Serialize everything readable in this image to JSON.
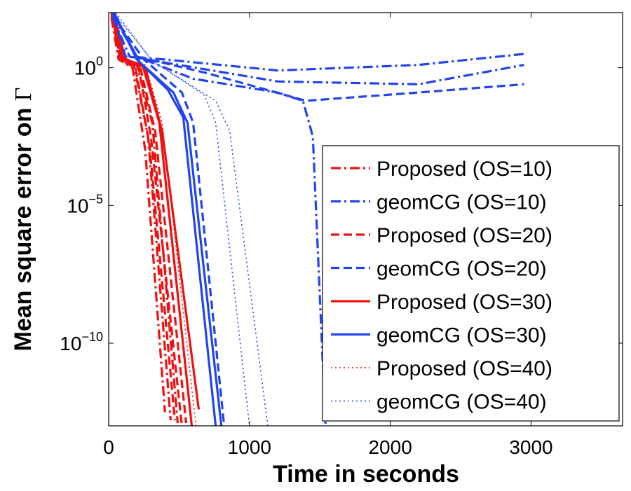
{
  "chart_data": {
    "type": "line",
    "xlabel": "Time in seconds",
    "ylabel_prefix": "Mean square error on ",
    "ylabel_symbol": "Γ",
    "xlim": [
      0,
      3650
    ],
    "ylim_log10": [
      -13,
      2
    ],
    "y_scale": "log",
    "x_ticks": [
      0,
      1000,
      2000,
      3000
    ],
    "x_tick_labels": [
      "0",
      "1000",
      "2000",
      "3000"
    ],
    "y_ticks_log10": [
      0,
      -5,
      -10
    ],
    "y_tick_labels": [
      {
        "base": "10",
        "exp": "0"
      },
      {
        "base": "10",
        "exp": "−5"
      },
      {
        "base": "10",
        "exp": "−10"
      }
    ],
    "legend_position": "right-center",
    "legend": [
      {
        "label": "Proposed (OS=10)",
        "color": "#ee1111",
        "style": "dashdot"
      },
      {
        "label": "geomCG (OS=10)",
        "color": "#2244ee",
        "style": "dashdot"
      },
      {
        "label": "Proposed (OS=20)",
        "color": "#ee1111",
        "style": "dashed"
      },
      {
        "label": "geomCG (OS=20)",
        "color": "#2244ee",
        "style": "dashed"
      },
      {
        "label": "Proposed (OS=30)",
        "color": "#ee1111",
        "style": "solid"
      },
      {
        "label": "geomCG (OS=30)",
        "color": "#2244ee",
        "style": "solid"
      },
      {
        "label": "Proposed (OS=40)",
        "color": "#ee1111",
        "style": "dotted"
      },
      {
        "label": "geomCG (OS=40)",
        "color": "#2244ee",
        "style": "dotted"
      }
    ],
    "series": [
      {
        "name": "Proposed (OS=10) run 1",
        "color": "#ee1111",
        "style": "dashdot",
        "points": [
          [
            20,
            2.0
          ],
          [
            80,
            0.3
          ],
          [
            180,
            0.1
          ],
          [
            280,
            -2.5
          ],
          [
            440,
            -12.8
          ]
        ]
      },
      {
        "name": "Proposed (OS=10) run 2",
        "color": "#ee1111",
        "style": "dashdot",
        "points": [
          [
            20,
            1.8
          ],
          [
            70,
            0.3
          ],
          [
            170,
            0.0
          ],
          [
            260,
            -3.0
          ],
          [
            400,
            -12.5
          ]
        ]
      },
      {
        "name": "Proposed (OS=10) run 3",
        "color": "#ee1111",
        "style": "dashdot",
        "points": [
          [
            20,
            1.9
          ],
          [
            90,
            0.3
          ],
          [
            200,
            0.1
          ],
          [
            310,
            -2.0
          ],
          [
            490,
            -12.9
          ]
        ]
      },
      {
        "name": "Proposed (OS=20) run 1",
        "color": "#ee1111",
        "style": "dashed",
        "points": [
          [
            30,
            2.0
          ],
          [
            90,
            0.4
          ],
          [
            210,
            0.1
          ],
          [
            300,
            -2.5
          ],
          [
            520,
            -13.0
          ]
        ]
      },
      {
        "name": "Proposed (OS=20) run 2",
        "color": "#ee1111",
        "style": "dashed",
        "points": [
          [
            30,
            1.9
          ],
          [
            80,
            0.3
          ],
          [
            190,
            0.0
          ],
          [
            290,
            -2.8
          ],
          [
            470,
            -12.8
          ]
        ]
      },
      {
        "name": "Proposed (OS=20) run 3",
        "color": "#ee1111",
        "style": "dashed",
        "points": [
          [
            30,
            1.8
          ],
          [
            100,
            0.3
          ],
          [
            220,
            0.1
          ],
          [
            330,
            -2.3
          ],
          [
            550,
            -12.9
          ]
        ]
      },
      {
        "name": "Proposed (OS=30) run 1",
        "color": "#ee1111",
        "style": "solid",
        "points": [
          [
            40,
            2.0
          ],
          [
            110,
            0.3
          ],
          [
            240,
            0.1
          ],
          [
            360,
            -2.0
          ],
          [
            590,
            -13.0
          ]
        ]
      },
      {
        "name": "Proposed (OS=30) run 2",
        "color": "#ee1111",
        "style": "solid",
        "points": [
          [
            40,
            1.8
          ],
          [
            120,
            0.3
          ],
          [
            260,
            0.0
          ],
          [
            380,
            -2.3
          ],
          [
            640,
            -12.4
          ]
        ]
      },
      {
        "name": "Proposed (OS=40) run 1",
        "color": "#ee1111",
        "style": "dotted",
        "points": [
          [
            40,
            2.0
          ],
          [
            120,
            0.3
          ],
          [
            260,
            0.1
          ],
          [
            380,
            -2.0
          ],
          [
            620,
            -13.0
          ]
        ]
      },
      {
        "name": "geomCG (OS=10) run 1",
        "color": "#2244ee",
        "style": "dashdot",
        "points": [
          [
            30,
            2.0
          ],
          [
            120,
            0.4
          ],
          [
            400,
            0.3
          ],
          [
            1200,
            -0.1
          ],
          [
            2200,
            0.1
          ],
          [
            2950,
            0.5
          ]
        ]
      },
      {
        "name": "geomCG (OS=10) run 2",
        "color": "#2244ee",
        "style": "dashdot",
        "points": [
          [
            30,
            1.8
          ],
          [
            150,
            0.4
          ],
          [
            500,
            0.1
          ],
          [
            1200,
            -0.5
          ],
          [
            2200,
            -0.6
          ],
          [
            2950,
            0.1
          ]
        ]
      },
      {
        "name": "geomCG (OS=10) run 3",
        "color": "#2244ee",
        "style": "dashdot",
        "points": [
          [
            30,
            1.9
          ],
          [
            200,
            0.4
          ],
          [
            600,
            -0.4
          ],
          [
            1200,
            -0.9
          ],
          [
            1380,
            -1.2
          ],
          [
            1450,
            -2.5
          ],
          [
            1540,
            -13.0
          ]
        ]
      },
      {
        "name": "geomCG (OS=20) run 1",
        "color": "#2244ee",
        "style": "dashed",
        "points": [
          [
            30,
            2.0
          ],
          [
            200,
            0.4
          ],
          [
            700,
            -0.2
          ],
          [
            1400,
            -1.2
          ],
          [
            2200,
            -0.9
          ],
          [
            2950,
            -0.6
          ]
        ]
      },
      {
        "name": "geomCG (OS=20) run 2",
        "color": "#2244ee",
        "style": "dashed",
        "points": [
          [
            30,
            1.9
          ],
          [
            250,
            0.3
          ],
          [
            520,
            -0.9
          ],
          [
            600,
            -2.0
          ],
          [
            820,
            -13.0
          ]
        ]
      },
      {
        "name": "geomCG (OS=30) run 1",
        "color": "#2244ee",
        "style": "solid",
        "points": [
          [
            40,
            2.0
          ],
          [
            200,
            0.3
          ],
          [
            420,
            -0.8
          ],
          [
            530,
            -1.8
          ],
          [
            760,
            -13.0
          ]
        ]
      },
      {
        "name": "geomCG (OS=30) run 2",
        "color": "#2244ee",
        "style": "solid",
        "points": [
          [
            40,
            1.9
          ],
          [
            220,
            0.2
          ],
          [
            460,
            -0.9
          ],
          [
            560,
            -2.0
          ],
          [
            800,
            -13.0
          ]
        ]
      },
      {
        "name": "geomCG (OS=40) run 1",
        "color": "#2244ee",
        "style": "dotted",
        "points": [
          [
            50,
            2.0
          ],
          [
            300,
            0.3
          ],
          [
            680,
            -1.0
          ],
          [
            760,
            -2.0
          ],
          [
            1000,
            -13.0
          ]
        ]
      },
      {
        "name": "geomCG (OS=40) run 2",
        "color": "#2244ee",
        "style": "dotted",
        "points": [
          [
            50,
            1.9
          ],
          [
            320,
            0.2
          ],
          [
            760,
            -1.2
          ],
          [
            860,
            -2.3
          ],
          [
            1130,
            -13.0
          ]
        ]
      }
    ]
  }
}
